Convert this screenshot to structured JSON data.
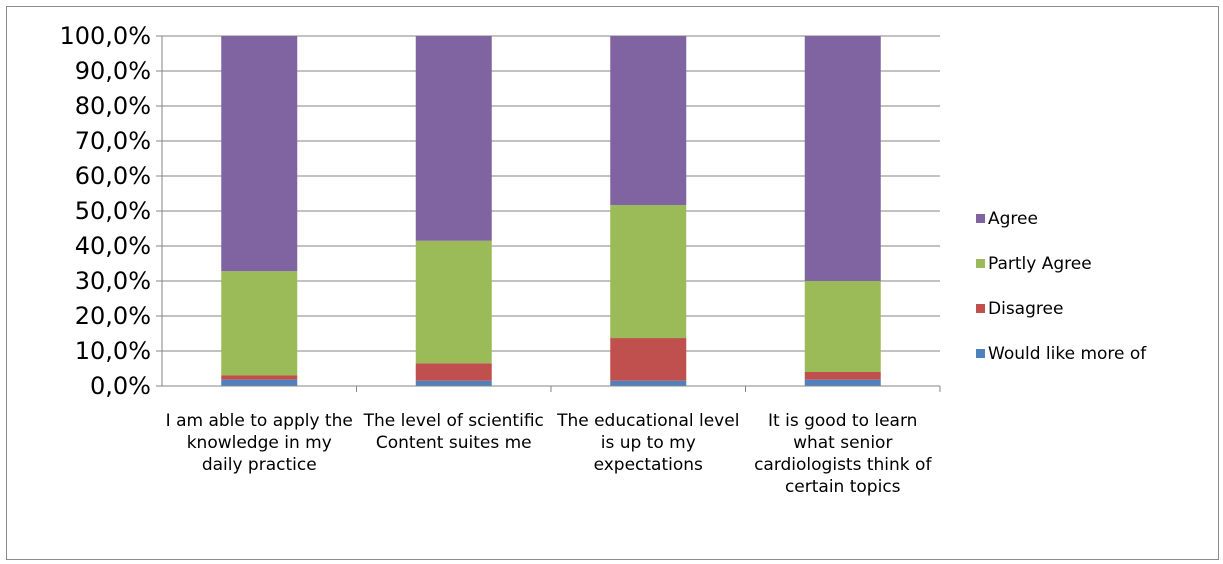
{
  "chart_data": {
    "type": "bar",
    "stacked": true,
    "categories": [
      "I am able to apply the knowledge in my daily practice",
      "The level of scientific Content suites me",
      "The educational level is up to my expectations",
      "It is good to learn what senior cardiologists think of certain topics"
    ],
    "series": [
      {
        "name": "Would like more of",
        "color": "#4f81bd",
        "values": [
          1.8,
          1.5,
          1.5,
          1.8
        ]
      },
      {
        "name": "Disagree",
        "color": "#c0504d",
        "values": [
          1.2,
          5.0,
          12.2,
          2.2
        ]
      },
      {
        "name": "Partly Agree",
        "color": "#9bbb59",
        "values": [
          29.8,
          35.0,
          38.0,
          26.0
        ]
      },
      {
        "name": "Agree",
        "color": "#8064a2",
        "values": [
          67.2,
          58.5,
          48.3,
          70.0
        ]
      }
    ],
    "y_ticks": [
      "0,0%",
      "10,0%",
      "20,0%",
      "30,0%",
      "40,0%",
      "50,0%",
      "60,0%",
      "70,0%",
      "80,0%",
      "90,0%",
      "100,0%"
    ],
    "ylim": [
      0,
      100
    ],
    "grid": true,
    "legend_position": "right",
    "legend_order": [
      "Agree",
      "Partly Agree",
      "Disagree",
      "Would like more of"
    ]
  }
}
